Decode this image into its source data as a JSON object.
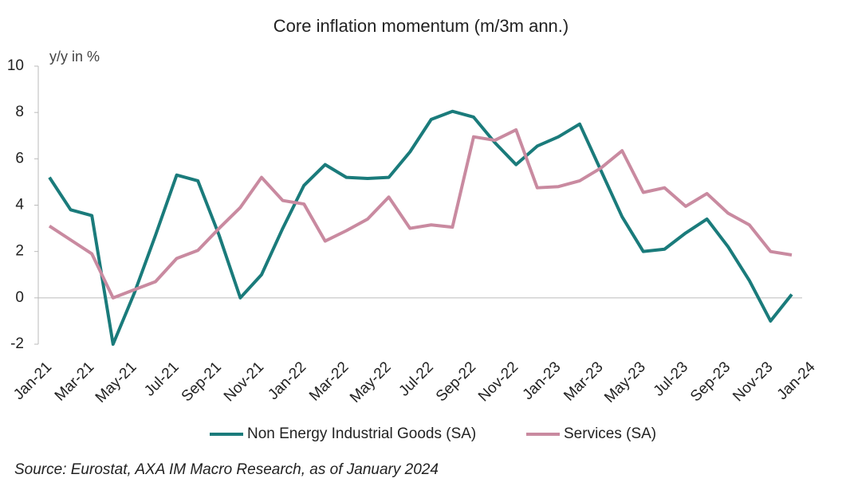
{
  "chart_data": {
    "type": "line",
    "title": "Core inflation momentum (m/3m ann.)",
    "y_axis_label": "y/y in %",
    "source": "Source: Eurostat, AXA IM Macro Research, as of January 2024",
    "categories": [
      "Jan-21",
      null,
      "Mar-21",
      null,
      "May-21",
      null,
      "Jul-21",
      null,
      "Sep-21",
      null,
      "Nov-21",
      null,
      "Jan-22",
      null,
      "Mar-22",
      null,
      "May-22",
      null,
      "Jul-22",
      null,
      "Sep-22",
      null,
      "Nov-22",
      null,
      "Jan-23",
      null,
      "Mar-23",
      null,
      "May-23",
      null,
      "Jul-23",
      null,
      "Sep-23",
      null,
      "Nov-23",
      null,
      "Jan-24"
    ],
    "series": [
      {
        "name": "Non Energy Industrial Goods (SA)",
        "color": "#1a7b7b",
        "values": [
          5.2,
          3.8,
          3.55,
          -2.0,
          0.2,
          2.7,
          5.3,
          5.05,
          2.7,
          0.0,
          1.0,
          3.0,
          4.85,
          5.75,
          5.2,
          5.15,
          5.2,
          6.3,
          7.7,
          8.05,
          7.8,
          6.7,
          5.75,
          6.55,
          6.95,
          7.5,
          5.5,
          3.5,
          2.0,
          2.1,
          2.8,
          3.4,
          2.2,
          0.75,
          -1.0,
          0.15,
          null
        ]
      },
      {
        "name": "Services (SA)",
        "color": "#c98aa0",
        "values": [
          3.1,
          2.5,
          1.9,
          0.0,
          0.35,
          0.7,
          1.7,
          2.05,
          3.0,
          3.9,
          5.2,
          4.2,
          4.05,
          2.45,
          2.9,
          3.4,
          4.35,
          3.0,
          3.15,
          3.05,
          6.95,
          6.8,
          7.25,
          4.75,
          4.8,
          5.05,
          5.6,
          6.35,
          4.55,
          4.75,
          3.95,
          4.5,
          3.65,
          3.15,
          2.0,
          1.85,
          null
        ]
      }
    ],
    "ylim": [
      -2,
      10
    ],
    "yticks": [
      -2,
      0,
      2,
      4,
      6,
      8,
      10
    ],
    "grid": false
  }
}
